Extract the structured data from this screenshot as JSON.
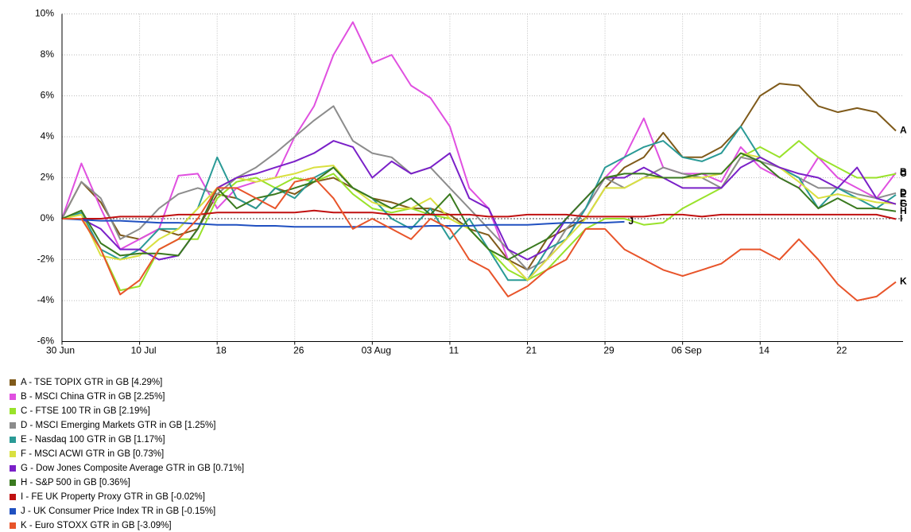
{
  "chart_data": {
    "type": "line",
    "categories": [
      "30 Jun",
      null,
      null,
      null,
      "10 Jul",
      null,
      null,
      null,
      "18",
      null,
      null,
      null,
      "26",
      null,
      null,
      null,
      "03 Aug",
      null,
      null,
      null,
      "11",
      null,
      null,
      null,
      "21",
      null,
      null,
      null,
      "29",
      null,
      null,
      null,
      "06 Sep",
      null,
      null,
      null,
      "14",
      null,
      null,
      null,
      "22",
      null,
      null,
      null
    ],
    "ylim": [
      -6,
      10
    ],
    "yticks": [
      {
        "value": -6,
        "label": "-6%"
      },
      {
        "value": -4,
        "label": "-4%"
      },
      {
        "value": -2,
        "label": "-2%"
      },
      {
        "value": 0,
        "label": "0%"
      },
      {
        "value": 2,
        "label": "2%"
      },
      {
        "value": 4,
        "label": "4%"
      },
      {
        "value": 6,
        "label": "6%"
      },
      {
        "value": 8,
        "label": "8%"
      },
      {
        "value": 10,
        "label": "10%"
      }
    ],
    "grid": true,
    "series": [
      {
        "key": "A",
        "name": "A - TSE TOPIX GTR in GB [4.29%]",
        "color": "#7f5a1a",
        "values": [
          0,
          1.8,
          0.8,
          -0.8,
          -1.0,
          -0.5,
          -0.8,
          -0.5,
          1.2,
          1.0,
          0.5,
          1.5,
          1.2,
          1.8,
          2.0,
          1.5,
          1.0,
          0.8,
          0.5,
          0.5,
          0.2,
          -0.5,
          -0.8,
          -2.0,
          -2.5,
          -1.0,
          -0.5,
          0.0,
          1.5,
          2.5,
          3.0,
          4.2,
          3.0,
          3.0,
          3.5,
          4.5,
          6.0,
          6.6,
          6.5,
          5.5,
          5.2,
          5.4,
          5.2,
          4.29
        ]
      },
      {
        "key": "B",
        "name": "B - MSCI China GTR in GB [2.25%]",
        "color": "#e050e0",
        "values": [
          0,
          2.7,
          0.5,
          -1.5,
          -1.0,
          -0.5,
          2.1,
          2.2,
          0.5,
          1.5,
          1.8,
          2.0,
          4.0,
          5.5,
          8.0,
          9.6,
          7.6,
          8.0,
          6.5,
          5.9,
          4.5,
          1.5,
          0.5,
          -2.0,
          -3.0,
          -2.0,
          -1.0,
          0.5,
          2.0,
          3.0,
          4.9,
          2.5,
          2.2,
          2.2,
          1.8,
          3.5,
          2.5,
          2.0,
          1.5,
          3.0,
          2.0,
          1.5,
          1.0,
          2.25
        ]
      },
      {
        "key": "C",
        "name": "C - FTSE 100 TR in GB [2.19%]",
        "color": "#99e22a",
        "values": [
          0,
          0.2,
          -1.5,
          -3.5,
          -3.3,
          -1.5,
          -1.0,
          -1.0,
          1.0,
          1.8,
          2.0,
          1.5,
          2.0,
          1.8,
          2.2,
          1.2,
          0.5,
          0.3,
          0.5,
          0.2,
          0.0,
          -0.5,
          -1.5,
          -2.5,
          -3.0,
          -2.5,
          -1.5,
          -0.5,
          0.0,
          0.0,
          -0.3,
          -0.2,
          0.5,
          1.0,
          1.5,
          3.0,
          3.5,
          3.0,
          3.8,
          3.0,
          2.5,
          2.0,
          2.0,
          2.19
        ]
      },
      {
        "key": "D",
        "name": "D - MSCI Emerging Markets GTR in GB [1.25%]",
        "color": "#8c8c8c",
        "values": [
          0,
          1.8,
          1.0,
          -1.0,
          -0.5,
          0.5,
          1.2,
          1.5,
          1.2,
          2.0,
          2.5,
          3.2,
          4.0,
          4.8,
          5.5,
          3.8,
          3.2,
          3.0,
          2.2,
          2.5,
          1.5,
          0.5,
          -0.5,
          -1.5,
          -2.5,
          -2.0,
          -0.5,
          0.5,
          2.0,
          1.5,
          2.0,
          2.5,
          2.2,
          2.0,
          1.5,
          3.0,
          2.8,
          2.5,
          2.0,
          1.5,
          1.5,
          1.2,
          1.0,
          1.25
        ]
      },
      {
        "key": "E",
        "name": "E - Nasdaq 100 GTR in GB [1.17%]",
        "color": "#2a9a96",
        "values": [
          0,
          0.3,
          -1.5,
          -2.0,
          -1.5,
          -0.5,
          -0.5,
          0.5,
          3.0,
          1.0,
          0.5,
          1.5,
          1.0,
          2.0,
          2.5,
          1.5,
          1.0,
          0.0,
          -0.5,
          0.5,
          -1.0,
          0.0,
          -1.5,
          -3.0,
          -3.0,
          -1.5,
          -1.0,
          0.5,
          2.5,
          3.0,
          3.5,
          3.8,
          3.0,
          2.8,
          3.2,
          4.5,
          3.0,
          2.5,
          2.0,
          0.5,
          1.5,
          1.0,
          0.5,
          1.17
        ]
      },
      {
        "key": "F",
        "name": "F - MSCI ACWI GTR in GB [0.73%]",
        "color": "#d9e040",
        "values": [
          0,
          0.2,
          -1.8,
          -2.0,
          -1.8,
          -1.0,
          -0.5,
          0.5,
          1.5,
          2.0,
          1.8,
          2.0,
          2.2,
          2.5,
          2.6,
          1.5,
          0.8,
          0.5,
          0.5,
          1.0,
          0.0,
          -0.5,
          -1.5,
          -2.0,
          -3.0,
          -2.0,
          -1.0,
          0.0,
          1.5,
          1.5,
          2.0,
          2.0,
          2.0,
          2.0,
          2.2,
          3.2,
          3.0,
          2.5,
          1.8,
          1.0,
          1.2,
          1.0,
          0.8,
          0.73
        ]
      },
      {
        "key": "G",
        "name": "G - Dow Jones Composite Average GTR in GB [0.71%]",
        "color": "#7a20c8",
        "values": [
          0,
          0.0,
          -0.5,
          -1.5,
          -1.5,
          -2.0,
          -1.8,
          -0.5,
          1.5,
          2.0,
          2.2,
          2.5,
          2.8,
          3.2,
          3.8,
          3.5,
          2.0,
          2.8,
          2.2,
          2.5,
          3.2,
          1.0,
          0.5,
          -1.5,
          -2.0,
          -1.5,
          0.0,
          1.0,
          2.0,
          2.0,
          2.5,
          2.0,
          1.5,
          1.5,
          1.5,
          2.5,
          3.0,
          2.5,
          2.2,
          2.0,
          1.5,
          2.5,
          1.0,
          0.71
        ]
      },
      {
        "key": "H",
        "name": "H - S&P 500 in GB [0.36%]",
        "color": "#3a7a1f",
        "values": [
          0,
          0.4,
          -1.2,
          -1.8,
          -1.7,
          -1.7,
          -1.8,
          -0.5,
          1.5,
          0.5,
          1.0,
          1.2,
          1.5,
          1.8,
          2.5,
          1.5,
          1.0,
          0.5,
          1.0,
          0.2,
          1.2,
          -0.5,
          -1.5,
          -2.0,
          -1.5,
          -1.0,
          0.0,
          1.0,
          2.0,
          2.2,
          2.2,
          2.0,
          2.0,
          2.2,
          2.2,
          3.2,
          2.8,
          2.0,
          1.5,
          0.5,
          1.0,
          0.5,
          0.5,
          0.36
        ]
      },
      {
        "key": "I",
        "name": "I - FE UK Property Proxy GTR in GB [-0.02%]",
        "color": "#c01010",
        "values": [
          0,
          0.0,
          0.0,
          0.1,
          0.1,
          0.1,
          0.2,
          0.2,
          0.3,
          0.3,
          0.3,
          0.3,
          0.3,
          0.4,
          0.3,
          0.3,
          0.3,
          0.2,
          0.2,
          0.2,
          0.2,
          0.2,
          0.1,
          0.1,
          0.2,
          0.2,
          0.2,
          0.1,
          0.1,
          0.1,
          0.1,
          0.2,
          0.2,
          0.1,
          0.2,
          0.2,
          0.2,
          0.2,
          0.2,
          0.2,
          0.2,
          0.2,
          0.2,
          -0.02
        ]
      },
      {
        "key": "J",
        "name": "J - UK Consumer Price Index TR in GB [-0.15%]",
        "color": "#2050c0",
        "values": [
          0,
          -0.05,
          -0.1,
          -0.1,
          -0.15,
          -0.2,
          -0.2,
          -0.25,
          -0.3,
          -0.3,
          -0.35,
          -0.35,
          -0.4,
          -0.4,
          -0.4,
          -0.4,
          -0.4,
          -0.4,
          -0.4,
          -0.35,
          -0.35,
          -0.35,
          -0.3,
          -0.3,
          -0.3,
          -0.25,
          -0.2,
          -0.2,
          -0.2,
          -0.15,
          null,
          null,
          null,
          null,
          null,
          null,
          null,
          null,
          null,
          null,
          null,
          null,
          null,
          null
        ]
      },
      {
        "key": "K",
        "name": "K - Euro STOXX GTR in GB [-3.09%]",
        "color": "#e8542a",
        "values": [
          0,
          0.0,
          -1.5,
          -3.7,
          -3.0,
          -1.5,
          -1.0,
          0.0,
          1.5,
          1.5,
          1.0,
          0.5,
          1.8,
          2.0,
          1.0,
          -0.5,
          0.0,
          -0.5,
          -1.0,
          0.0,
          -0.5,
          -2.0,
          -2.5,
          -3.8,
          -3.3,
          -2.5,
          -2.0,
          -0.5,
          -0.5,
          -1.5,
          -2.0,
          -2.5,
          -2.8,
          -2.5,
          -2.2,
          -1.5,
          -1.5,
          -2.0,
          -1.0,
          -2.0,
          -3.2,
          -4.0,
          -3.8,
          -3.09
        ]
      }
    ]
  }
}
